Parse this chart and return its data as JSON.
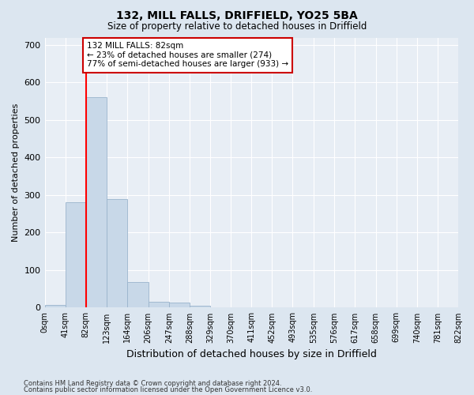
{
  "title1": "132, MILL FALLS, DRIFFIELD, YO25 5BA",
  "title2": "Size of property relative to detached houses in Driffield",
  "xlabel": "Distribution of detached houses by size in Driffield",
  "ylabel": "Number of detached properties",
  "footnote1": "Contains HM Land Registry data © Crown copyright and database right 2024.",
  "footnote2": "Contains public sector information licensed under the Open Government Licence v3.0.",
  "bin_edges": [
    0,
    41,
    82,
    123,
    164,
    206,
    247,
    288,
    329,
    370,
    411,
    452,
    493,
    535,
    576,
    617,
    658,
    699,
    740,
    781,
    822
  ],
  "bar_heights": [
    7,
    280,
    560,
    290,
    68,
    15,
    14,
    5,
    0,
    0,
    0,
    0,
    0,
    0,
    0,
    0,
    0,
    0,
    0,
    0
  ],
  "bar_color": "#c8d8e8",
  "bar_edge_color": "#9ab4cc",
  "red_line_x": 82,
  "ylim": [
    0,
    720
  ],
  "yticks": [
    0,
    100,
    200,
    300,
    400,
    500,
    600,
    700
  ],
  "annotation_text": "132 MILL FALLS: 82sqm\n← 23% of detached houses are smaller (274)\n77% of semi-detached houses are larger (933) →",
  "annotation_box_color": "#ffffff",
  "annotation_box_edge": "#cc0000",
  "bg_color": "#dce6f0",
  "plot_bg_color": "#e8eef5"
}
